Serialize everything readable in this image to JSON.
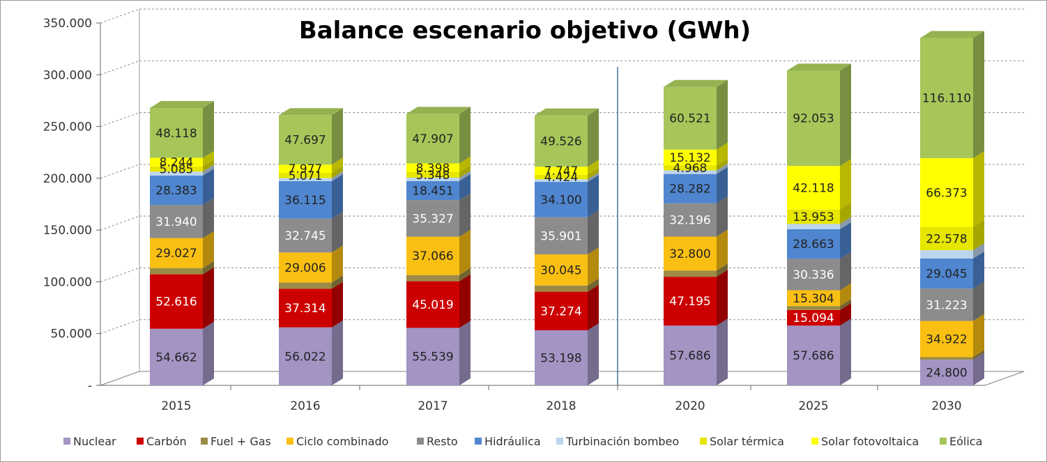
{
  "chart_data": {
    "type": "bar",
    "stacked": true,
    "title": "Balance  escenario objetivo (GWh)",
    "categories": [
      "2015",
      "2016",
      "2017",
      "2018",
      "2020",
      "2025",
      "2030"
    ],
    "ylim": [
      0,
      350000
    ],
    "y_ticks": [
      {
        "value": 0,
        "label": "-"
      },
      {
        "value": 50000,
        "label": "50.000"
      },
      {
        "value": 100000,
        "label": "100.000"
      },
      {
        "value": 150000,
        "label": "150.000"
      },
      {
        "value": 200000,
        "label": "200.000"
      },
      {
        "value": 250000,
        "label": "250.000"
      },
      {
        "value": 300000,
        "label": "300.000"
      },
      {
        "value": 350000,
        "label": "350.000"
      }
    ],
    "grid": true,
    "legend": "bottom",
    "series": [
      {
        "name": "Nuclear",
        "color": "#a394c4",
        "label_color": "#222222",
        "values": [
          54662,
          56022,
          55539,
          53198,
          57686,
          57686,
          24800
        ],
        "labels": [
          "54.662",
          "56.022",
          "55.539",
          "53.198",
          "57.686",
          "57.686",
          "24.800"
        ]
      },
      {
        "name": "Carbón",
        "color": "#cc0000",
        "label_color": "#ffffff",
        "values": [
          52616,
          37314,
          45019,
          37274,
          47195,
          15094,
          0
        ],
        "labels": [
          "52.616",
          "37.314",
          "45.019",
          "37.274",
          "47.195",
          "15.094",
          ""
        ]
      },
      {
        "name": "Fuel + Gas",
        "color": "#9b8b44",
        "label_color": "#222222",
        "values": [
          6000,
          6000,
          6000,
          6000,
          6000,
          3800,
          2500
        ],
        "labels": [
          "",
          "",
          "",
          "",
          "",
          "",
          ""
        ]
      },
      {
        "name": "Ciclo combinado",
        "color": "#f9bf12",
        "label_color": "#222222",
        "values": [
          29027,
          29006,
          37066,
          30045,
          32800,
          15304,
          34922
        ],
        "labels": [
          "29.027",
          "29.006",
          "37.066",
          "30.045",
          "32.800",
          "15.304",
          "34.922"
        ]
      },
      {
        "name": "Resto",
        "color": "#8c8c8c",
        "label_color": "#ffffff",
        "values": [
          31940,
          32745,
          35327,
          35901,
          32196,
          30336,
          31223
        ],
        "labels": [
          "31.940",
          "32.745",
          "35.327",
          "35.901",
          "32.196",
          "30.336",
          "31.223"
        ]
      },
      {
        "name": "Hidráulica",
        "color": "#4f86cf",
        "label_color": "#222222",
        "values": [
          28383,
          36115,
          18451,
          34100,
          28282,
          28663,
          29045
        ],
        "labels": [
          "28.383",
          "36.115",
          "18.451",
          "34.100",
          "28.282",
          "28.663",
          "29.045"
        ]
      },
      {
        "name": "Turbinación bombeo",
        "color": "#bcd5ee",
        "label_color": "#222222",
        "values": [
          3800,
          3000,
          3200,
          2500,
          3500,
          5000,
          8000
        ],
        "labels": [
          "",
          "",
          "",
          "",
          "",
          "",
          ""
        ]
      },
      {
        "name": "Solar térmica",
        "color": "#e6e600",
        "label_color": "#222222",
        "values": [
          5085,
          5071,
          5348,
          4424,
          4968,
          13953,
          22578
        ],
        "labels": [
          "5.085",
          "5.071",
          "5.348",
          "4.424",
          "4.968",
          "13.953",
          "22.578"
        ]
      },
      {
        "name": "Solar fotovoltaica",
        "color": "#ffff00",
        "label_color": "#222222",
        "values": [
          8244,
          7977,
          8398,
          7747,
          15132,
          42118,
          66373
        ],
        "labels": [
          "8.244",
          "7.977",
          "8.398",
          "7.747",
          "15.132",
          "42.118",
          "66.373"
        ]
      },
      {
        "name": "Eólica",
        "color": "#a6c65a",
        "label_color": "#222222",
        "values": [
          48118,
          47697,
          47907,
          49526,
          60521,
          92053,
          116110
        ],
        "labels": [
          "48.118",
          "47.697",
          "47.907",
          "49.526",
          "60.521",
          "92.053",
          "116.110"
        ]
      }
    ]
  }
}
